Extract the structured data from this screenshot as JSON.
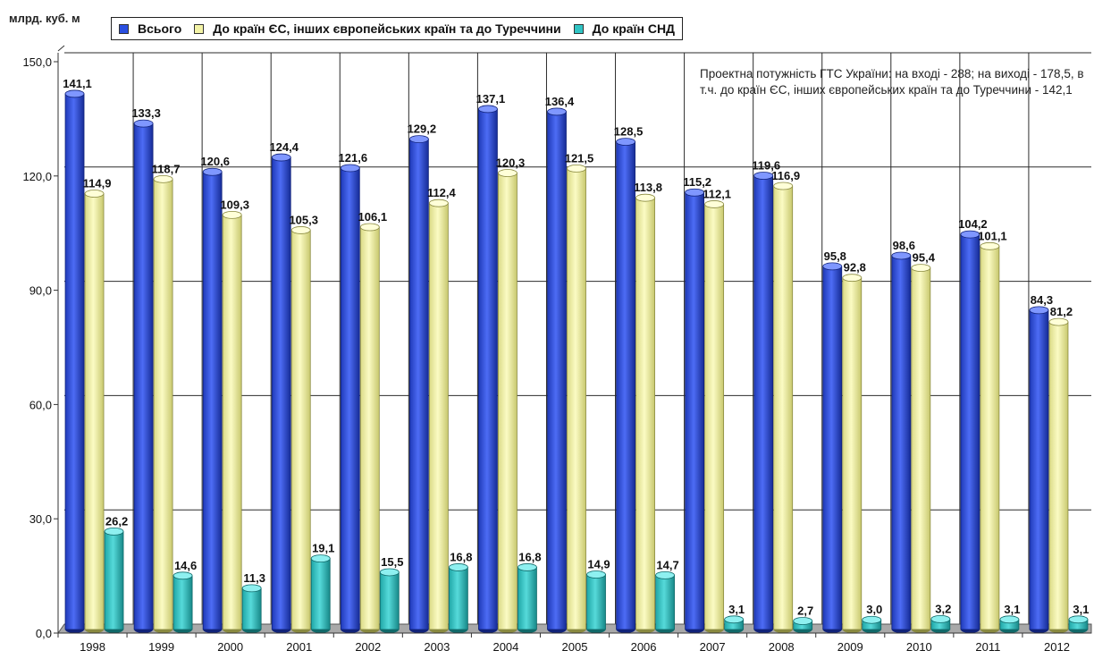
{
  "unit_label": "млрд. куб. м",
  "note": "Проектна потужність ГТС України: на вході - 288; на виході - 178,5, в т.ч. до країн ЄС, інших європейських країн та до Туреччини - 142,1",
  "colors": {
    "series1": "#2a4fe0",
    "series2": "#f3f3a6",
    "series3": "#30c4c4",
    "grid": "#2b2b2b",
    "floor": "#a9a9a9"
  },
  "chart_data": {
    "type": "bar",
    "categories": [
      "1998",
      "1999",
      "2000",
      "2001",
      "2002",
      "2003",
      "2004",
      "2005",
      "2006",
      "2007",
      "2008",
      "2009",
      "2010",
      "2011",
      "2012"
    ],
    "series": [
      {
        "name": "Всього",
        "color": "#2a4fe0",
        "values": [
          141.1,
          133.3,
          120.6,
          124.4,
          121.6,
          129.2,
          137.1,
          136.4,
          128.5,
          115.2,
          119.6,
          95.8,
          98.6,
          104.2,
          84.3
        ],
        "labels": [
          "141,1",
          "133,3",
          "120,6",
          "124,4",
          "121,6",
          "129,2",
          "137,1",
          "136,4",
          "128,5",
          "115,2",
          "119,6",
          "95,8",
          "98,6",
          "104,2",
          "84,3"
        ]
      },
      {
        "name": "До країн ЄС, інших європейських країн та до Туреччини",
        "color": "#f3f3a6",
        "values": [
          114.9,
          118.7,
          109.3,
          105.3,
          106.1,
          112.4,
          120.3,
          121.5,
          113.8,
          112.1,
          116.9,
          92.8,
          95.4,
          101.1,
          81.2
        ],
        "labels": [
          "114,9",
          "118,7",
          "109,3",
          "105,3",
          "106,1",
          "112,4",
          "120,3",
          "121,5",
          "113,8",
          "112,1",
          "116,9",
          "92,8",
          "95,4",
          "101,1",
          "81,2"
        ]
      },
      {
        "name": "До країн СНД",
        "color": "#30c4c4",
        "values": [
          26.2,
          14.6,
          11.3,
          19.1,
          15.5,
          16.8,
          16.8,
          14.9,
          14.7,
          3.1,
          2.7,
          3.0,
          3.2,
          3.1,
          3.1
        ],
        "labels": [
          "26,2",
          "14,6",
          "11,3",
          "19,1",
          "15,5",
          "16,8",
          "16,8",
          "14,9",
          "14,7",
          "3,1",
          "2,7",
          "3,0",
          "3,2",
          "3,1",
          "3,1"
        ]
      }
    ],
    "ylim": [
      0,
      150
    ],
    "yticks": [
      0,
      30,
      60,
      90,
      120,
      150
    ],
    "ytick_labels": [
      "0,0",
      "30,0",
      "60,0",
      "90,0",
      "120,0",
      "150,0"
    ],
    "grid": true,
    "legend_position": "top"
  }
}
